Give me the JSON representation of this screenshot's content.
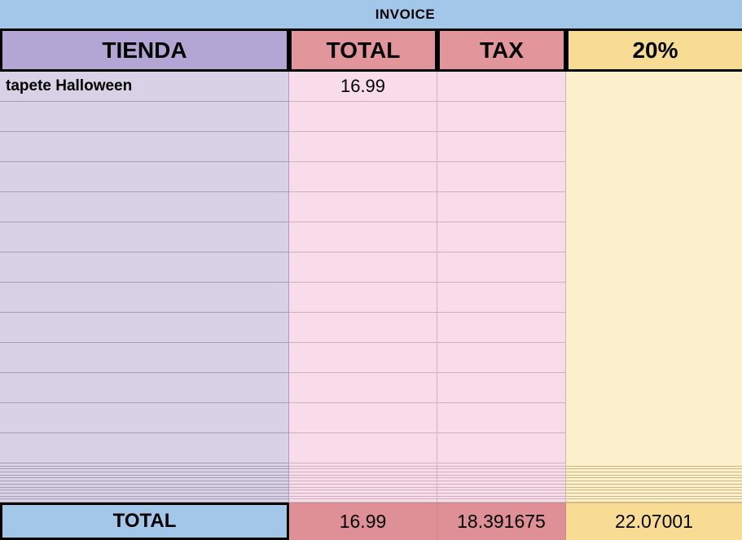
{
  "title": {
    "text": "INVOICE"
  },
  "header": {
    "columns": [
      {
        "id": "tienda",
        "label": "TIENDA"
      },
      {
        "id": "total",
        "label": "TOTAL"
      },
      {
        "id": "tax",
        "label": "TAX"
      },
      {
        "id": "pct",
        "label": "20%"
      }
    ]
  },
  "rows": [
    {
      "tienda": "tapete Halloween",
      "total": "16.99",
      "tax": "",
      "pct": ""
    }
  ],
  "empty_row_count": 12,
  "squished_row_count": 13,
  "footer": {
    "label": "TOTAL",
    "total": "16.99",
    "tax": "18.391675",
    "pct": "22.07001"
  },
  "colors": {
    "title_bar": "#a3c7e8",
    "header_tienda": "#b3a6d4",
    "header_total_tax": "#e2959b",
    "header_pct": "#f8dc94",
    "body_tienda": "#d8d2e6",
    "body_total_tax": "#f9dcea",
    "body_pct": "#fcf0cc",
    "footer_label_bg": "#a3c7e8",
    "footer_total_tax": "#de9096",
    "footer_pct": "#f8dc94",
    "grid_border": "#000000"
  }
}
